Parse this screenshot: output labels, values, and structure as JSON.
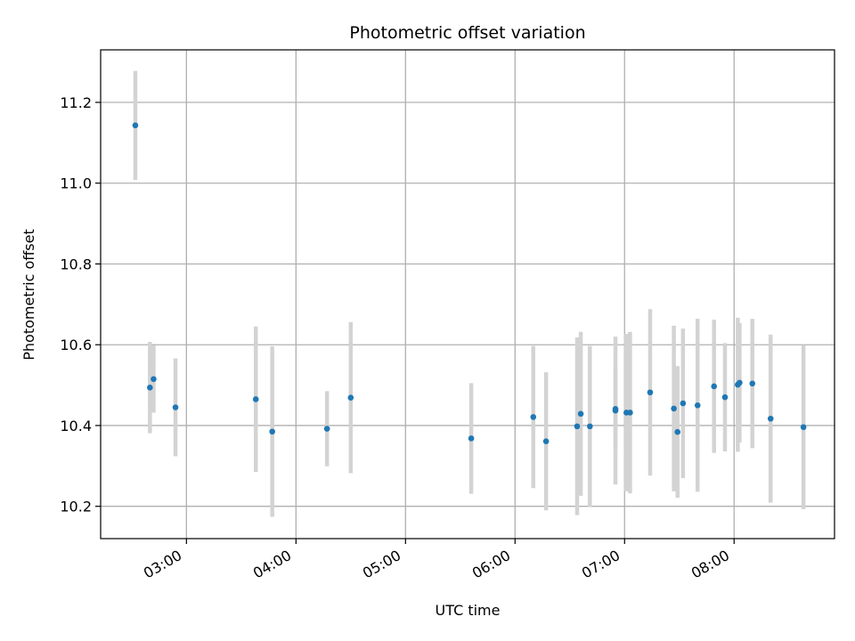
{
  "chart_data": {
    "type": "scatter",
    "title": "Photometric offset variation",
    "xlabel": "UTC time",
    "ylabel": "Photometric offset",
    "x_axis_kind": "time",
    "xlim": [
      "02:13",
      "08:55"
    ],
    "ylim": [
      10.12,
      11.33
    ],
    "x_ticks": [
      "03:00",
      "04:00",
      "05:00",
      "06:00",
      "07:00",
      "08:00"
    ],
    "y_ticks": [
      10.2,
      10.4,
      10.6,
      10.8,
      11.0,
      11.2
    ],
    "grid": true,
    "legend": "none",
    "colors": {
      "marker": "#1f77b4",
      "errorbar": "#d3d3d3",
      "grid": "#b0b0b0"
    },
    "series": [
      {
        "points": [
          {
            "x": "02:32",
            "y": 11.143,
            "err": 0.135
          },
          {
            "x": "02:40",
            "y": 10.494,
            "err": 0.113
          },
          {
            "x": "02:42",
            "y": 10.515,
            "err": 0.083
          },
          {
            "x": "02:54",
            "y": 10.445,
            "err": 0.121
          },
          {
            "x": "03:38",
            "y": 10.465,
            "err": 0.18
          },
          {
            "x": "03:47",
            "y": 10.385,
            "err": 0.211
          },
          {
            "x": "04:17",
            "y": 10.392,
            "err": 0.093
          },
          {
            "x": "04:30",
            "y": 10.469,
            "err": 0.187
          },
          {
            "x": "05:36",
            "y": 10.368,
            "err": 0.137
          },
          {
            "x": "06:10",
            "y": 10.421,
            "err": 0.176
          },
          {
            "x": "06:17",
            "y": 10.361,
            "err": 0.171
          },
          {
            "x": "06:34",
            "y": 10.398,
            "err": 0.22
          },
          {
            "x": "06:36",
            "y": 10.429,
            "err": 0.203
          },
          {
            "x": "06:41",
            "y": 10.398,
            "err": 0.199
          },
          {
            "x": "06:55",
            "y": 10.437,
            "err": 0.183
          },
          {
            "x": "06:55",
            "y": 10.441,
            "err": 0.1
          },
          {
            "x": "07:01",
            "y": 10.432,
            "err": 0.195
          },
          {
            "x": "07:03",
            "y": 10.432,
            "err": 0.2
          },
          {
            "x": "07:14",
            "y": 10.482,
            "err": 0.206
          },
          {
            "x": "07:27",
            "y": 10.442,
            "err": 0.205
          },
          {
            "x": "07:29",
            "y": 10.384,
            "err": 0.163
          },
          {
            "x": "07:32",
            "y": 10.455,
            "err": 0.185
          },
          {
            "x": "07:40",
            "y": 10.45,
            "err": 0.214
          },
          {
            "x": "07:49",
            "y": 10.497,
            "err": 0.165
          },
          {
            "x": "07:55",
            "y": 10.47,
            "err": 0.134
          },
          {
            "x": "08:02",
            "y": 10.501,
            "err": 0.166
          },
          {
            "x": "08:03",
            "y": 10.506,
            "err": 0.148
          },
          {
            "x": "08:10",
            "y": 10.504,
            "err": 0.16
          },
          {
            "x": "08:20",
            "y": 10.417,
            "err": 0.208
          },
          {
            "x": "08:38",
            "y": 10.396,
            "err": 0.203
          }
        ]
      }
    ]
  }
}
